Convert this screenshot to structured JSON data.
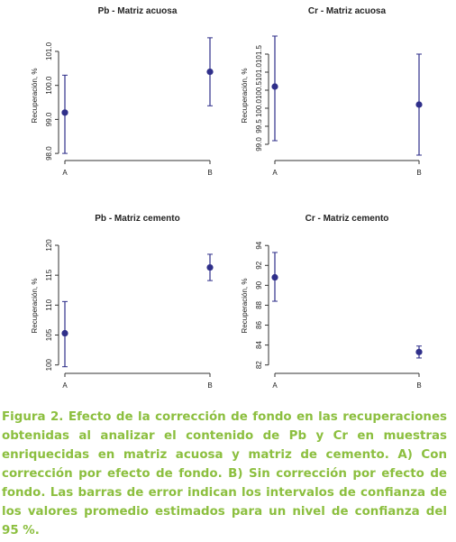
{
  "chart_data": [
    {
      "type": "scatter",
      "title": "Pb - Matriz acuosa",
      "y_label": "Recuperación, %",
      "categories": [
        "A",
        "B"
      ],
      "series": [
        {
          "color": "#2f2f8a",
          "values": [
            99.2,
            100.4
          ],
          "lower": [
            98.0,
            99.4
          ],
          "upper": [
            100.3,
            101.4
          ]
        }
      ],
      "ylim": [
        97.95,
        101.45
      ],
      "yticks": [
        {
          "value": 98,
          "label": "98.0"
        },
        {
          "value": 99,
          "label": "99.0"
        },
        {
          "value": 100,
          "label": "100.0"
        },
        {
          "value": 101,
          "label": "101.0"
        }
      ]
    },
    {
      "type": "scatter",
      "title": "Cr - Matriz acuosa",
      "y_label": "Recuperación, %",
      "categories": [
        "A",
        "B"
      ],
      "series": [
        {
          "color": "#2f2f8a",
          "values": [
            100.6,
            100.1
          ],
          "lower": [
            99.1,
            98.7
          ],
          "upper": [
            102.0,
            101.5
          ]
        }
      ],
      "ylim": [
        98.7,
        102.0
      ],
      "yticks": [
        {
          "value": 99,
          "label": "99.0"
        },
        99.5,
        {
          "value": 100,
          "label": "100.0"
        },
        100.5,
        {
          "value": 101,
          "label": "101.0"
        },
        101.5
      ]
    },
    {
      "type": "scatter",
      "title": "Pb - Matriz cemento",
      "y_label": "Recuperación, %",
      "categories": [
        "A",
        "B"
      ],
      "series": [
        {
          "color": "#2f2f8a",
          "values": [
            105.3,
            116.3
          ],
          "lower": [
            99.7,
            114.1
          ],
          "upper": [
            110.6,
            118.5
          ]
        }
      ],
      "ylim": [
        99.5,
        120.3
      ],
      "yticks": [
        100,
        105,
        110,
        115,
        120
      ]
    },
    {
      "type": "scatter",
      "title": "Cr - Matriz cemento",
      "y_label": "Recuperación, %",
      "categories": [
        "A",
        "B"
      ],
      "series": [
        {
          "color": "#2f2f8a",
          "values": [
            90.8,
            83.3
          ],
          "lower": [
            88.4,
            82.7
          ],
          "upper": [
            93.3,
            83.9
          ]
        }
      ],
      "ylim": [
        81.7,
        94.2
      ],
      "yticks": [
        82,
        84,
        86,
        88,
        90,
        92,
        94
      ]
    }
  ],
  "caption": "Figura 2. Efecto de la corrección de fondo en las recuperaciones obtenidas al analizar el contenido de Pb y Cr en muestras enriquecidas en matriz acuosa y matriz de cemento. A) Con corrección por efecto de fondo. B) Sin corrección por efecto de fondo. Las barras de error indican los intervalos de confianza de los valores promedio estimados para un nivel de confianza del 95 %."
}
